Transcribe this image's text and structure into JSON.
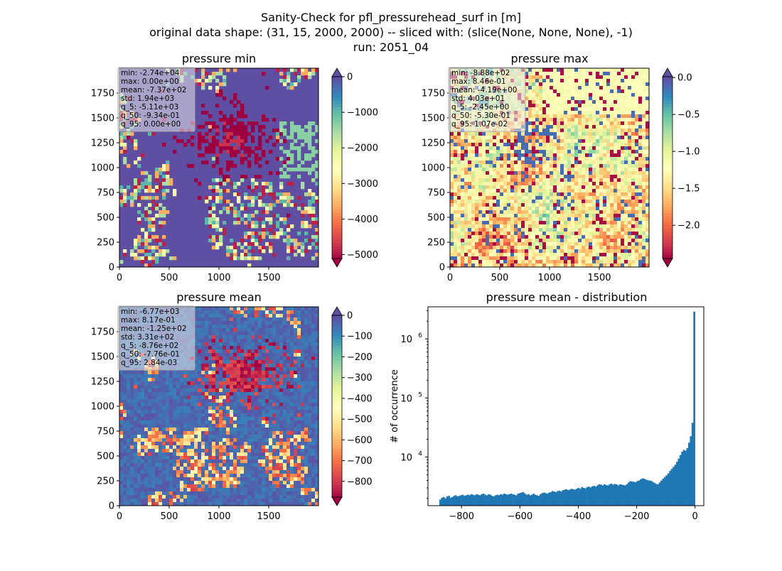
{
  "figure": {
    "title_lines": [
      "Sanity-Check for pfl_pressurehead_surf in [m]",
      "original data shape: (31, 15, 2000, 2000) -- sliced with: (slice(None, None, None), -1)",
      "run: 2051_04"
    ]
  },
  "chart_data": [
    {
      "type": "heatmap",
      "title": "pressure min",
      "xlim": [
        0,
        2000
      ],
      "ylim": [
        0,
        2000
      ],
      "xticks": [
        "0",
        "500",
        "1000",
        "1500"
      ],
      "yticks": [
        "0",
        "250",
        "500",
        "750",
        "1000",
        "1250",
        "1500",
        "1750"
      ],
      "colormap": "Spectral",
      "colorbar": {
        "range": [
          -5110,
          0
        ],
        "extend": "both",
        "ticks": [
          "0",
          "−1000",
          "−2000",
          "−3000",
          "−4000",
          "−5000"
        ]
      },
      "stats": [
        "min: -2.74e+04",
        "max: 0.00e+00",
        "mean: -7.37e+02",
        "std: 1.94e+03",
        "q_5: -5.11e+03",
        "q_50: -9.34e-01",
        "q_95: 0.00e+00"
      ]
    },
    {
      "type": "heatmap",
      "title": "pressure max",
      "xlim": [
        0,
        2000
      ],
      "ylim": [
        0,
        2000
      ],
      "xticks": [
        "0",
        "500",
        "1000",
        "1500"
      ],
      "yticks": [
        "0",
        "250",
        "500",
        "750",
        "1000",
        "1250",
        "1500",
        "1750"
      ],
      "colormap": "Spectral",
      "colorbar": {
        "range": [
          -2.45,
          0.0107
        ],
        "extend": "both",
        "ticks": [
          "0.0",
          "−0.5",
          "−1.0",
          "−1.5",
          "−2.0"
        ]
      },
      "stats": [
        "min: -8.88e+02",
        "max: 8.46e-01",
        "mean: -4.19e+00",
        "std: 4.03e+01",
        "q_5: -2.45e+00",
        "q_50: -5.30e-01",
        "q_95: 1.07e-02"
      ]
    },
    {
      "type": "heatmap",
      "title": "pressure mean",
      "xlim": [
        0,
        2000
      ],
      "ylim": [
        0,
        2000
      ],
      "xticks": [
        "0",
        "500",
        "1000",
        "1500"
      ],
      "yticks": [
        "0",
        "250",
        "500",
        "750",
        "1000",
        "1250",
        "1500",
        "1750"
      ],
      "colormap": "Spectral",
      "colorbar": {
        "range": [
          -876,
          0.00284
        ],
        "extend": "both",
        "ticks": [
          "0",
          "−100",
          "−200",
          "−300",
          "−400",
          "−500",
          "−600",
          "−700",
          "−800"
        ]
      },
      "stats": [
        "min: -6.77e+03",
        "max: 8.17e-01",
        "mean: -1.25e+02",
        "std: 3.31e+02",
        "q_5: -8.76e+02",
        "q_50: -7.76e-01",
        "q_95: 2.84e-03"
      ]
    },
    {
      "type": "bar",
      "title": "pressure mean - distribution",
      "ylabel": "# of occurrence",
      "yscale": "log",
      "xlim": [
        -915,
        30
      ],
      "ylim": [
        1500,
        3500000
      ],
      "xticks": [
        "−800",
        "−600",
        "−400",
        "−200",
        "0"
      ],
      "yticks": [
        "10",
        "10",
        "10"
      ],
      "ytick_exponents": [
        "6",
        "5",
        "4"
      ],
      "bar_color": "#1f77b4",
      "bin_range": [
        -876,
        0
      ],
      "counts": [
        1900,
        2050,
        2100,
        2000,
        2150,
        2200,
        2050,
        2100,
        2200,
        2250,
        2150,
        2200,
        2250,
        2300,
        2200,
        2250,
        2300,
        2250,
        2350,
        2300,
        2250,
        2350,
        2300,
        2250,
        2350,
        2400,
        2300,
        2250,
        2350,
        2300,
        2200,
        2150,
        2250,
        2300,
        2250,
        2350,
        2300,
        2400,
        2350,
        2300,
        2350,
        2400,
        2350,
        2300,
        2250,
        2400,
        2450,
        2500,
        2550,
        2400,
        2300,
        2350,
        2250,
        2300,
        2400,
        2300,
        2250,
        2200,
        2350,
        2450,
        2500,
        2450,
        2400,
        2500,
        2550,
        2650,
        2600,
        2550,
        2650,
        2700,
        2600,
        2750,
        2800,
        2850,
        2750,
        2800,
        2900,
        2850,
        2800,
        2900,
        3000,
        2900,
        3100,
        3000,
        2950,
        3100,
        3150,
        3050,
        3200,
        3250,
        3150,
        3300,
        3450,
        3400,
        3300,
        3450,
        3350,
        3300,
        3450,
        3550,
        3400,
        3500,
        3450,
        3300,
        3450,
        3400,
        3350,
        3300,
        3450,
        3700,
        3900,
        3850,
        3800,
        3750,
        3900,
        4000,
        4200,
        4350,
        4300,
        4150,
        4050,
        4000,
        3950,
        3800,
        3650,
        3500,
        3450,
        3700,
        4000,
        4300,
        4600,
        4900,
        5300,
        5800,
        6300,
        6800,
        7400,
        8300,
        9400,
        10800,
        12300,
        13200,
        12800,
        14200,
        17500,
        22500,
        38000,
        2900000
      ]
    }
  ]
}
